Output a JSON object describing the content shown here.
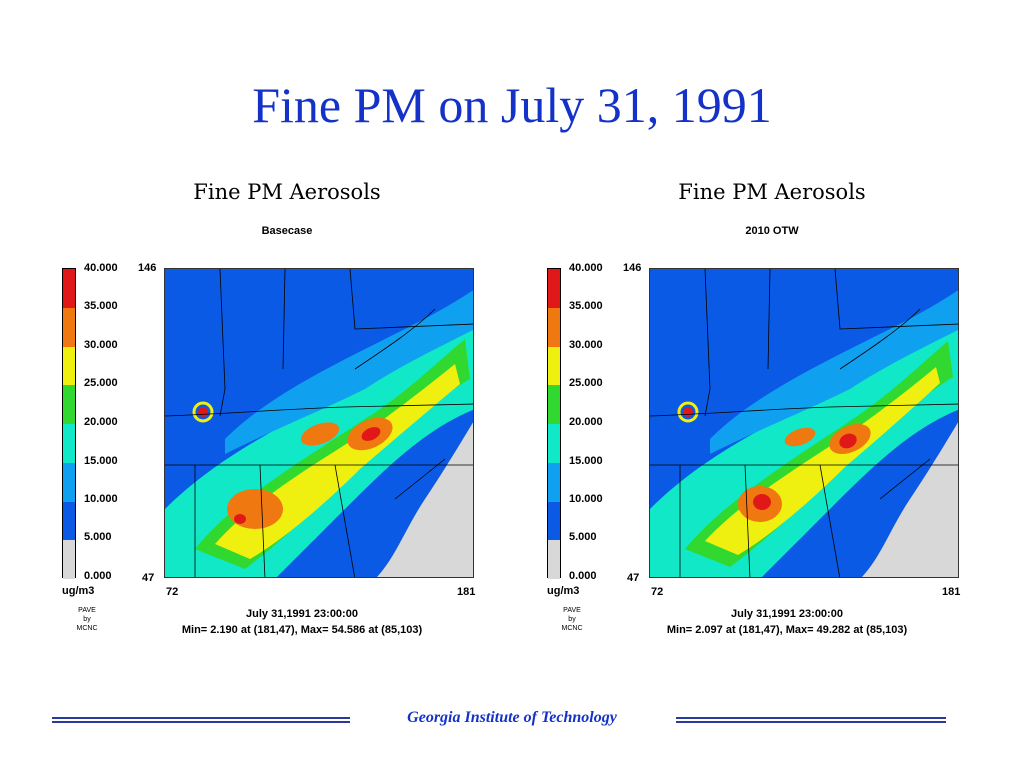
{
  "title": "Fine PM on July 31, 1991",
  "footer": "Georgia Institute of Technology",
  "colors": {
    "title": "#1432c8",
    "footer_rule": "#2a3a9c",
    "legend": [
      "#e01818",
      "#f07810",
      "#f0f010",
      "#c8f000",
      "#30d830",
      "#10e8c8",
      "#10a0f0",
      "#0a5ae6",
      "#d8d8d8"
    ]
  },
  "panels": [
    {
      "title": "Fine PM Aerosols",
      "subtitle": "Basecase",
      "legend_labels": [
        "40.000",
        "35.000",
        "30.000",
        "25.000",
        "20.000",
        "15.000",
        "10.000",
        "5.000",
        "0.000"
      ],
      "unit": "ug/m3",
      "credit": [
        "PAVE",
        "by",
        "MCNC"
      ],
      "y_top": "146",
      "y_bottom": "47",
      "x_left": "72",
      "x_right": "181",
      "timestamp": "July 31,1991 23:00:00",
      "stats": "Min=   2.190 at (181,47), Max=  54.586 at (85,103)"
    },
    {
      "title": "Fine PM Aerosols",
      "subtitle": "2010 OTW",
      "legend_labels": [
        "40.000",
        "35.000",
        "30.000",
        "25.000",
        "20.000",
        "15.000",
        "10.000",
        "5.000",
        "0.000"
      ],
      "unit": "ug/m3",
      "credit": [
        "PAVE",
        "by",
        "MCNC"
      ],
      "y_top": "146",
      "y_bottom": "47",
      "x_left": "72",
      "x_right": "181",
      "timestamp": "July 31,1991 23:00:00",
      "stats": "Min=   2.097 at (181,47), Max=  49.282 at (85,103)"
    }
  ]
}
